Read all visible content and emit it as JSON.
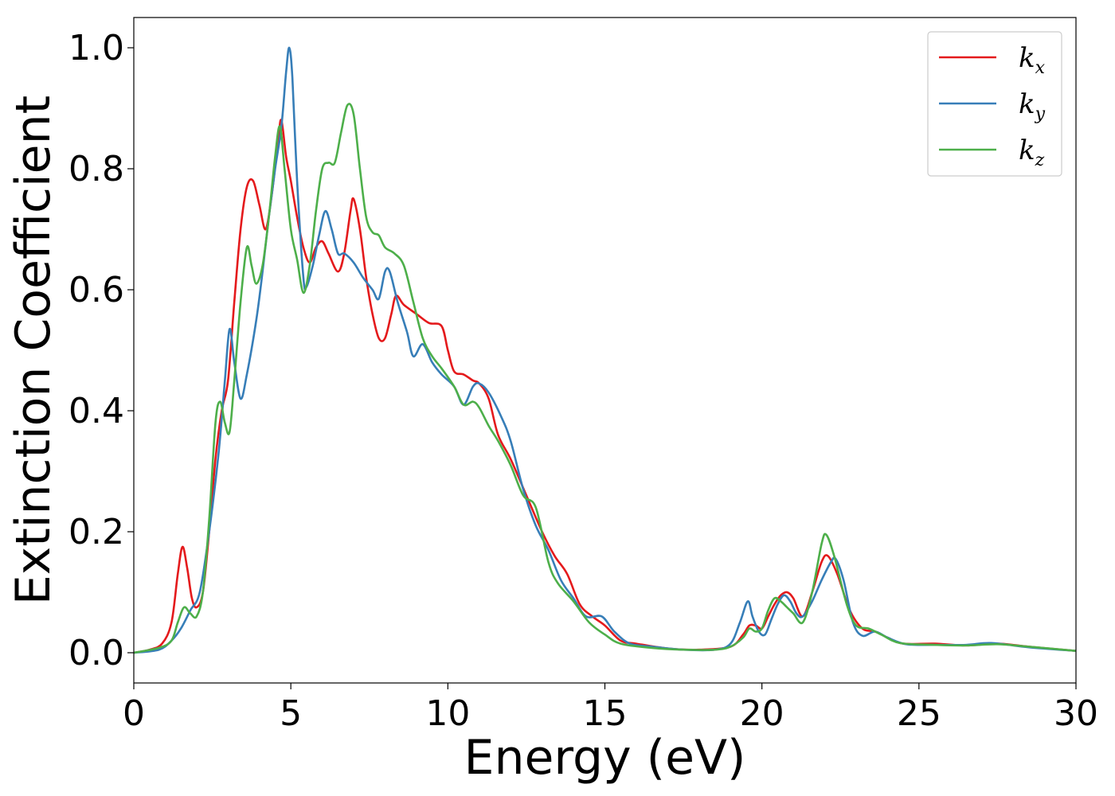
{
  "chart_data": {
    "type": "line",
    "xlabel": "Energy (eV)",
    "ylabel": "Extinction Coefficient",
    "xlim": [
      0,
      30
    ],
    "ylim": [
      -0.05,
      1.05
    ],
    "x_ticks": [
      0,
      5,
      10,
      15,
      20,
      25,
      30
    ],
    "x_tick_labels": [
      "0",
      "5",
      "10",
      "15",
      "20",
      "25",
      "30"
    ],
    "y_ticks": [
      0.0,
      0.2,
      0.4,
      0.6,
      0.8,
      1.0
    ],
    "y_tick_labels": [
      "0.0",
      "0.2",
      "0.4",
      "0.6",
      "0.8",
      "1.0"
    ],
    "grid": false,
    "legend_position": "top-right",
    "series": [
      {
        "name": "k",
        "subscript": "x",
        "color": "#e41a1c",
        "points": [
          [
            0,
            0.0
          ],
          [
            0.5,
            0.005
          ],
          [
            0.9,
            0.015
          ],
          [
            1.2,
            0.05
          ],
          [
            1.4,
            0.13
          ],
          [
            1.55,
            0.175
          ],
          [
            1.7,
            0.14
          ],
          [
            1.85,
            0.09
          ],
          [
            2.0,
            0.075
          ],
          [
            2.2,
            0.1
          ],
          [
            2.4,
            0.2
          ],
          [
            2.6,
            0.32
          ],
          [
            2.8,
            0.4
          ],
          [
            3.0,
            0.45
          ],
          [
            3.2,
            0.58
          ],
          [
            3.4,
            0.7
          ],
          [
            3.6,
            0.77
          ],
          [
            3.8,
            0.78
          ],
          [
            4.0,
            0.74
          ],
          [
            4.2,
            0.7
          ],
          [
            4.4,
            0.76
          ],
          [
            4.6,
            0.85
          ],
          [
            4.7,
            0.88
          ],
          [
            4.85,
            0.82
          ],
          [
            5.0,
            0.78
          ],
          [
            5.2,
            0.72
          ],
          [
            5.4,
            0.67
          ],
          [
            5.6,
            0.645
          ],
          [
            5.8,
            0.67
          ],
          [
            6.0,
            0.68
          ],
          [
            6.2,
            0.66
          ],
          [
            6.5,
            0.63
          ],
          [
            6.7,
            0.66
          ],
          [
            6.9,
            0.73
          ],
          [
            7.0,
            0.75
          ],
          [
            7.2,
            0.7
          ],
          [
            7.4,
            0.62
          ],
          [
            7.6,
            0.56
          ],
          [
            7.8,
            0.52
          ],
          [
            8.0,
            0.52
          ],
          [
            8.2,
            0.56
          ],
          [
            8.35,
            0.59
          ],
          [
            8.6,
            0.575
          ],
          [
            9.0,
            0.56
          ],
          [
            9.4,
            0.545
          ],
          [
            9.8,
            0.54
          ],
          [
            10.0,
            0.5
          ],
          [
            10.2,
            0.465
          ],
          [
            10.5,
            0.46
          ],
          [
            10.8,
            0.45
          ],
          [
            11.0,
            0.445
          ],
          [
            11.3,
            0.42
          ],
          [
            11.6,
            0.36
          ],
          [
            12.0,
            0.32
          ],
          [
            12.5,
            0.26
          ],
          [
            13.0,
            0.2
          ],
          [
            13.4,
            0.16
          ],
          [
            13.8,
            0.13
          ],
          [
            14.2,
            0.08
          ],
          [
            14.6,
            0.06
          ],
          [
            15.0,
            0.045
          ],
          [
            15.5,
            0.02
          ],
          [
            16.0,
            0.015
          ],
          [
            17.0,
            0.007
          ],
          [
            18.0,
            0.005
          ],
          [
            19.0,
            0.01
          ],
          [
            19.4,
            0.03
          ],
          [
            19.6,
            0.045
          ],
          [
            19.8,
            0.045
          ],
          [
            20.0,
            0.04
          ],
          [
            20.2,
            0.06
          ],
          [
            20.4,
            0.08
          ],
          [
            20.6,
            0.095
          ],
          [
            20.8,
            0.1
          ],
          [
            21.0,
            0.09
          ],
          [
            21.3,
            0.06
          ],
          [
            21.6,
            0.1
          ],
          [
            21.9,
            0.15
          ],
          [
            22.1,
            0.16
          ],
          [
            22.4,
            0.13
          ],
          [
            22.8,
            0.07
          ],
          [
            23.2,
            0.04
          ],
          [
            23.6,
            0.035
          ],
          [
            24.0,
            0.025
          ],
          [
            24.5,
            0.015
          ],
          [
            25.5,
            0.015
          ],
          [
            26.5,
            0.012
          ],
          [
            27.5,
            0.015
          ],
          [
            28.5,
            0.01
          ],
          [
            30,
            0.003
          ]
        ]
      },
      {
        "name": "k",
        "subscript": "y",
        "color": "#377eb8",
        "points": [
          [
            0,
            0.0
          ],
          [
            0.8,
            0.005
          ],
          [
            1.2,
            0.02
          ],
          [
            1.5,
            0.04
          ],
          [
            1.8,
            0.07
          ],
          [
            2.1,
            0.1
          ],
          [
            2.4,
            0.2
          ],
          [
            2.7,
            0.33
          ],
          [
            2.9,
            0.45
          ],
          [
            3.05,
            0.535
          ],
          [
            3.2,
            0.48
          ],
          [
            3.4,
            0.42
          ],
          [
            3.6,
            0.46
          ],
          [
            3.9,
            0.55
          ],
          [
            4.1,
            0.63
          ],
          [
            4.3,
            0.72
          ],
          [
            4.5,
            0.8
          ],
          [
            4.7,
            0.87
          ],
          [
            4.85,
            0.96
          ],
          [
            4.95,
            1.0
          ],
          [
            5.05,
            0.95
          ],
          [
            5.2,
            0.78
          ],
          [
            5.4,
            0.62
          ],
          [
            5.5,
            0.605
          ],
          [
            5.7,
            0.64
          ],
          [
            5.9,
            0.69
          ],
          [
            6.1,
            0.73
          ],
          [
            6.3,
            0.7
          ],
          [
            6.5,
            0.66
          ],
          [
            6.7,
            0.66
          ],
          [
            7.0,
            0.645
          ],
          [
            7.3,
            0.62
          ],
          [
            7.6,
            0.6
          ],
          [
            7.8,
            0.585
          ],
          [
            8.0,
            0.63
          ],
          [
            8.15,
            0.63
          ],
          [
            8.4,
            0.58
          ],
          [
            8.7,
            0.53
          ],
          [
            8.9,
            0.49
          ],
          [
            9.2,
            0.51
          ],
          [
            9.5,
            0.48
          ],
          [
            9.8,
            0.46
          ],
          [
            10.2,
            0.44
          ],
          [
            10.5,
            0.41
          ],
          [
            10.8,
            0.44
          ],
          [
            11.0,
            0.445
          ],
          [
            11.3,
            0.43
          ],
          [
            11.7,
            0.39
          ],
          [
            12.0,
            0.35
          ],
          [
            12.4,
            0.27
          ],
          [
            12.8,
            0.21
          ],
          [
            13.2,
            0.17
          ],
          [
            13.6,
            0.12
          ],
          [
            14.0,
            0.09
          ],
          [
            14.4,
            0.06
          ],
          [
            14.9,
            0.06
          ],
          [
            15.3,
            0.035
          ],
          [
            15.8,
            0.015
          ],
          [
            16.5,
            0.01
          ],
          [
            17.5,
            0.005
          ],
          [
            18.5,
            0.005
          ],
          [
            19.0,
            0.015
          ],
          [
            19.3,
            0.05
          ],
          [
            19.55,
            0.085
          ],
          [
            19.7,
            0.06
          ],
          [
            19.9,
            0.035
          ],
          [
            20.1,
            0.03
          ],
          [
            20.3,
            0.055
          ],
          [
            20.5,
            0.08
          ],
          [
            20.7,
            0.095
          ],
          [
            20.9,
            0.085
          ],
          [
            21.1,
            0.065
          ],
          [
            21.3,
            0.06
          ],
          [
            21.6,
            0.085
          ],
          [
            21.9,
            0.12
          ],
          [
            22.2,
            0.15
          ],
          [
            22.35,
            0.155
          ],
          [
            22.6,
            0.12
          ],
          [
            22.9,
            0.05
          ],
          [
            23.2,
            0.028
          ],
          [
            23.6,
            0.035
          ],
          [
            24.0,
            0.025
          ],
          [
            24.6,
            0.014
          ],
          [
            25.5,
            0.013
          ],
          [
            26.5,
            0.013
          ],
          [
            27.3,
            0.016
          ],
          [
            28.5,
            0.009
          ],
          [
            30,
            0.003
          ]
        ]
      },
      {
        "name": "k",
        "subscript": "z",
        "color": "#4daf4a",
        "points": [
          [
            0,
            0.0
          ],
          [
            0.8,
            0.008
          ],
          [
            1.2,
            0.02
          ],
          [
            1.4,
            0.05
          ],
          [
            1.6,
            0.075
          ],
          [
            1.8,
            0.065
          ],
          [
            2.0,
            0.06
          ],
          [
            2.2,
            0.1
          ],
          [
            2.4,
            0.22
          ],
          [
            2.6,
            0.38
          ],
          [
            2.75,
            0.415
          ],
          [
            2.9,
            0.38
          ],
          [
            3.05,
            0.365
          ],
          [
            3.2,
            0.45
          ],
          [
            3.4,
            0.58
          ],
          [
            3.6,
            0.67
          ],
          [
            3.75,
            0.64
          ],
          [
            3.9,
            0.61
          ],
          [
            4.1,
            0.64
          ],
          [
            4.3,
            0.72
          ],
          [
            4.5,
            0.82
          ],
          [
            4.65,
            0.87
          ],
          [
            4.8,
            0.8
          ],
          [
            5.0,
            0.7
          ],
          [
            5.2,
            0.65
          ],
          [
            5.4,
            0.595
          ],
          [
            5.6,
            0.64
          ],
          [
            5.8,
            0.73
          ],
          [
            6.0,
            0.8
          ],
          [
            6.2,
            0.81
          ],
          [
            6.4,
            0.81
          ],
          [
            6.6,
            0.86
          ],
          [
            6.8,
            0.905
          ],
          [
            7.0,
            0.89
          ],
          [
            7.2,
            0.8
          ],
          [
            7.4,
            0.72
          ],
          [
            7.6,
            0.695
          ],
          [
            7.8,
            0.69
          ],
          [
            8.0,
            0.67
          ],
          [
            8.3,
            0.66
          ],
          [
            8.6,
            0.64
          ],
          [
            8.9,
            0.58
          ],
          [
            9.2,
            0.52
          ],
          [
            9.5,
            0.49
          ],
          [
            9.8,
            0.47
          ],
          [
            10.2,
            0.44
          ],
          [
            10.5,
            0.41
          ],
          [
            10.8,
            0.415
          ],
          [
            11.0,
            0.405
          ],
          [
            11.3,
            0.375
          ],
          [
            11.6,
            0.35
          ],
          [
            12.0,
            0.31
          ],
          [
            12.4,
            0.26
          ],
          [
            12.8,
            0.24
          ],
          [
            13.2,
            0.15
          ],
          [
            13.5,
            0.115
          ],
          [
            14.0,
            0.085
          ],
          [
            14.5,
            0.05
          ],
          [
            15.0,
            0.03
          ],
          [
            15.5,
            0.015
          ],
          [
            16.5,
            0.008
          ],
          [
            17.5,
            0.005
          ],
          [
            18.5,
            0.005
          ],
          [
            19.0,
            0.01
          ],
          [
            19.4,
            0.025
          ],
          [
            19.6,
            0.04
          ],
          [
            19.8,
            0.035
          ],
          [
            20.0,
            0.04
          ],
          [
            20.2,
            0.07
          ],
          [
            20.4,
            0.09
          ],
          [
            20.6,
            0.085
          ],
          [
            20.8,
            0.075
          ],
          [
            21.0,
            0.065
          ],
          [
            21.3,
            0.05
          ],
          [
            21.6,
            0.1
          ],
          [
            21.9,
            0.18
          ],
          [
            22.05,
            0.195
          ],
          [
            22.3,
            0.16
          ],
          [
            22.7,
            0.08
          ],
          [
            23.0,
            0.045
          ],
          [
            23.4,
            0.04
          ],
          [
            23.8,
            0.03
          ],
          [
            24.4,
            0.016
          ],
          [
            25.5,
            0.013
          ],
          [
            26.5,
            0.012
          ],
          [
            27.5,
            0.014
          ],
          [
            28.5,
            0.01
          ],
          [
            30,
            0.003
          ]
        ]
      }
    ]
  }
}
